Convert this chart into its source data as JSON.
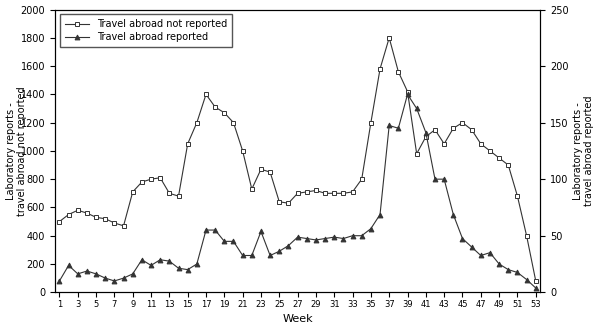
{
  "weeks": [
    1,
    2,
    3,
    4,
    5,
    6,
    7,
    8,
    9,
    10,
    11,
    12,
    13,
    14,
    15,
    16,
    17,
    18,
    19,
    20,
    21,
    22,
    23,
    24,
    25,
    26,
    27,
    28,
    29,
    30,
    31,
    32,
    33,
    34,
    35,
    36,
    37,
    38,
    39,
    40,
    41,
    42,
    43,
    44,
    45,
    46,
    47,
    48,
    49,
    50,
    51,
    52,
    53
  ],
  "not_reported": [
    500,
    550,
    580,
    560,
    530,
    520,
    490,
    470,
    710,
    780,
    800,
    810,
    700,
    680,
    1050,
    1200,
    1400,
    1310,
    1270,
    1200,
    1000,
    730,
    870,
    850,
    640,
    630,
    700,
    710,
    720,
    700,
    700,
    700,
    710,
    800,
    1200,
    1580,
    1800,
    1560,
    1420,
    980,
    1100,
    1150,
    1050,
    1160,
    1200,
    1150,
    1050,
    1000,
    950,
    900,
    680,
    400,
    80
  ],
  "reported": [
    80,
    190,
    130,
    150,
    130,
    100,
    80,
    100,
    130,
    230,
    190,
    230,
    220,
    170,
    160,
    200,
    440,
    440,
    360,
    360,
    260,
    260,
    430,
    260,
    290,
    330,
    390,
    380,
    370,
    380,
    390,
    380,
    400,
    400,
    450,
    550,
    1180,
    1160,
    1400,
    1300,
    1130,
    800,
    800,
    550,
    380,
    320,
    260,
    280,
    200,
    160,
    140,
    90,
    30
  ],
  "left_ylabel": "Laboratory reports -\ntravel abroad not reported",
  "right_ylabel": "Laboratory reports -\ntravel abroad reported",
  "xlabel": "Week",
  "left_ylim": [
    0,
    2000
  ],
  "right_ylim": [
    0,
    250
  ],
  "left_yticks": [
    0,
    200,
    400,
    600,
    800,
    1000,
    1200,
    1400,
    1600,
    1800,
    2000
  ],
  "right_yticks": [
    0,
    50,
    100,
    150,
    200,
    250
  ],
  "xtick_labels": [
    "1",
    "3",
    "5",
    "7",
    "9",
    "11",
    "13",
    "15",
    "17",
    "19",
    "21",
    "23",
    "25",
    "27",
    "29",
    "31",
    "33",
    "35",
    "37",
    "39",
    "41",
    "43",
    "45",
    "47",
    "49",
    "51",
    "53"
  ],
  "xtick_positions": [
    1,
    3,
    5,
    7,
    9,
    11,
    13,
    15,
    17,
    19,
    21,
    23,
    25,
    27,
    29,
    31,
    33,
    35,
    37,
    39,
    41,
    43,
    45,
    47,
    49,
    51,
    53
  ],
  "legend_not_reported": "Travel abroad not reported",
  "legend_reported": "Travel abroad reported",
  "line_color": "#333333",
  "bg_color": "#ffffff",
  "scale": 8.0
}
